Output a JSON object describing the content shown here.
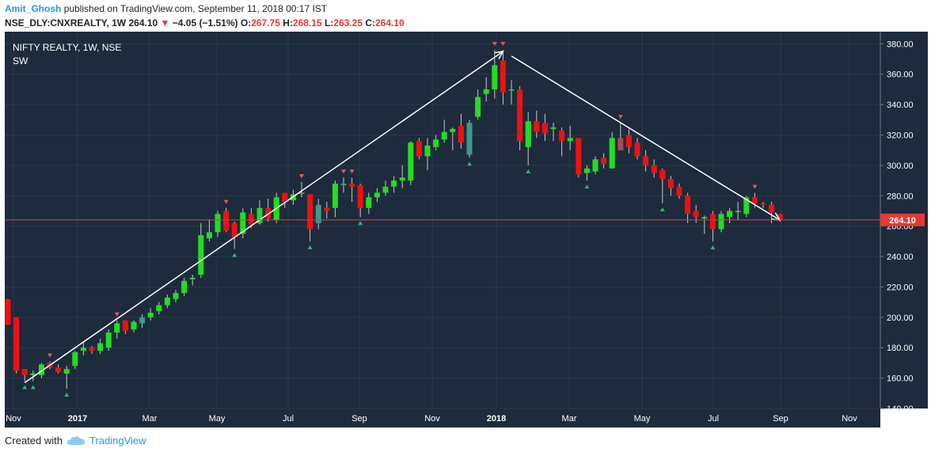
{
  "header": {
    "author": "Amit_Ghosh",
    "published": "published on TradingView.com, September 11, 2018 00:17 IST",
    "symbol": "NSE_DLY:CNXREALTY, 1W",
    "last": "264.10",
    "change": "−4.05 (−1.51%)",
    "o_label": "O:",
    "o_val": "267.75",
    "h_label": "H:",
    "h_val": "268.15",
    "l_label": "L:",
    "l_val": "263.25",
    "c_label": "C:",
    "c_val": "264.10"
  },
  "chart_title": "NIFTY REALTY, 1W, NSE",
  "indicator": "SW",
  "price_tag": "264.10",
  "footer": {
    "created_with": "Created with",
    "brand": "TradingView"
  },
  "colors": {
    "bg": "#1e2b3c",
    "up": "#22dd22",
    "down": "#ee1111",
    "up_dim": "#3a9a8a",
    "down_dim": "#a84c5c",
    "grid": "#2a3a4c",
    "trend": "#ffffff"
  },
  "chart_data": {
    "type": "candlestick",
    "title": "NIFTY REALTY, 1W, NSE",
    "ylim": [
      140,
      388
    ],
    "y_ticks": [
      "140.00",
      "160.00",
      "180.00",
      "200.00",
      "220.00",
      "240.00",
      "260.00",
      "280.00",
      "300.00",
      "320.00",
      "340.00",
      "360.00",
      "380.00"
    ],
    "x_ticks": [
      "Nov",
      "2017",
      "Mar",
      "May",
      "Jul",
      "Sep",
      "Nov",
      "2018",
      "Mar",
      "May",
      "Jul",
      "Sep",
      "Nov"
    ],
    "last_price": 264.1,
    "candles": [
      {
        "o": 212,
        "h": 212,
        "l": 195,
        "c": 195
      },
      {
        "o": 200,
        "h": 200,
        "l": 163,
        "c": 165
      },
      {
        "o": 166,
        "h": 166,
        "l": 158,
        "c": 162
      },
      {
        "o": 162,
        "h": 165,
        "l": 158,
        "c": 163
      },
      {
        "o": 162,
        "h": 170,
        "l": 160,
        "c": 169
      },
      {
        "o": 170,
        "h": 171,
        "l": 166,
        "c": 167
      },
      {
        "o": 167,
        "h": 169,
        "l": 163,
        "c": 164
      },
      {
        "o": 163,
        "h": 168,
        "l": 153,
        "c": 166
      },
      {
        "o": 168,
        "h": 178,
        "l": 166,
        "c": 177
      },
      {
        "o": 178,
        "h": 184,
        "l": 175,
        "c": 180
      },
      {
        "o": 180,
        "h": 181,
        "l": 176,
        "c": 178
      },
      {
        "o": 178,
        "h": 186,
        "l": 176,
        "c": 183
      },
      {
        "o": 180,
        "h": 192,
        "l": 178,
        "c": 190
      },
      {
        "o": 190,
        "h": 198,
        "l": 186,
        "c": 196
      },
      {
        "o": 198,
        "h": 198,
        "l": 189,
        "c": 191
      },
      {
        "o": 192,
        "h": 198,
        "l": 190,
        "c": 197
      },
      {
        "o": 196,
        "h": 202,
        "l": 193,
        "c": 200
      },
      {
        "o": 200,
        "h": 206,
        "l": 198,
        "c": 203
      },
      {
        "o": 204,
        "h": 210,
        "l": 202,
        "c": 208
      },
      {
        "o": 208,
        "h": 215,
        "l": 206,
        "c": 213
      },
      {
        "o": 212,
        "h": 218,
        "l": 210,
        "c": 216
      },
      {
        "o": 216,
        "h": 226,
        "l": 214,
        "c": 224
      },
      {
        "o": 225,
        "h": 228,
        "l": 221,
        "c": 226
      },
      {
        "o": 228,
        "h": 262,
        "l": 226,
        "c": 254
      },
      {
        "o": 252,
        "h": 264,
        "l": 250,
        "c": 256
      },
      {
        "o": 256,
        "h": 270,
        "l": 253,
        "c": 268
      },
      {
        "o": 270,
        "h": 272,
        "l": 256,
        "c": 257
      },
      {
        "o": 262,
        "h": 263,
        "l": 245,
        "c": 253
      },
      {
        "o": 255,
        "h": 272,
        "l": 252,
        "c": 269
      },
      {
        "o": 268,
        "h": 272,
        "l": 259,
        "c": 261
      },
      {
        "o": 262,
        "h": 277,
        "l": 261,
        "c": 272
      },
      {
        "o": 272,
        "h": 278,
        "l": 263,
        "c": 265
      },
      {
        "o": 264,
        "h": 282,
        "l": 262,
        "c": 279
      },
      {
        "o": 282,
        "h": 282,
        "l": 272,
        "c": 276
      },
      {
        "o": 277,
        "h": 284,
        "l": 274,
        "c": 281
      },
      {
        "o": 282,
        "h": 289,
        "l": 279,
        "c": 282
      },
      {
        "o": 281,
        "h": 281,
        "l": 250,
        "c": 258
      },
      {
        "o": 262,
        "h": 278,
        "l": 258,
        "c": 274
      },
      {
        "o": 272,
        "h": 276,
        "l": 265,
        "c": 270
      },
      {
        "o": 272,
        "h": 290,
        "l": 266,
        "c": 288
      },
      {
        "o": 287,
        "h": 292,
        "l": 282,
        "c": 288
      },
      {
        "o": 288,
        "h": 292,
        "l": 276,
        "c": 286
      },
      {
        "o": 287,
        "h": 288,
        "l": 266,
        "c": 272
      },
      {
        "o": 272,
        "h": 282,
        "l": 268,
        "c": 279
      },
      {
        "o": 279,
        "h": 285,
        "l": 276,
        "c": 282
      },
      {
        "o": 282,
        "h": 290,
        "l": 280,
        "c": 286
      },
      {
        "o": 286,
        "h": 293,
        "l": 282,
        "c": 290
      },
      {
        "o": 290,
        "h": 300,
        "l": 285,
        "c": 292
      },
      {
        "o": 290,
        "h": 316,
        "l": 287,
        "c": 315
      },
      {
        "o": 316,
        "h": 318,
        "l": 304,
        "c": 306
      },
      {
        "o": 306,
        "h": 318,
        "l": 297,
        "c": 313
      },
      {
        "o": 312,
        "h": 320,
        "l": 310,
        "c": 317
      },
      {
        "o": 317,
        "h": 330,
        "l": 315,
        "c": 322
      },
      {
        "o": 322,
        "h": 325,
        "l": 310,
        "c": 324
      },
      {
        "o": 326,
        "h": 334,
        "l": 311,
        "c": 315
      },
      {
        "o": 307,
        "h": 330,
        "l": 305,
        "c": 328
      },
      {
        "o": 332,
        "h": 350,
        "l": 330,
        "c": 345
      },
      {
        "o": 347,
        "h": 358,
        "l": 342,
        "c": 350
      },
      {
        "o": 350,
        "h": 376,
        "l": 344,
        "c": 366
      },
      {
        "o": 369,
        "h": 376,
        "l": 340,
        "c": 348
      },
      {
        "o": 350,
        "h": 356,
        "l": 340,
        "c": 350
      },
      {
        "o": 350,
        "h": 352,
        "l": 310,
        "c": 316
      },
      {
        "o": 312,
        "h": 335,
        "l": 300,
        "c": 329
      },
      {
        "o": 329,
        "h": 336,
        "l": 318,
        "c": 322
      },
      {
        "o": 328,
        "h": 334,
        "l": 316,
        "c": 321
      },
      {
        "o": 324,
        "h": 328,
        "l": 316,
        "c": 325
      },
      {
        "o": 323,
        "h": 325,
        "l": 306,
        "c": 316
      },
      {
        "o": 316,
        "h": 326,
        "l": 310,
        "c": 318
      },
      {
        "o": 318,
        "h": 318,
        "l": 292,
        "c": 294
      },
      {
        "o": 295,
        "h": 300,
        "l": 290,
        "c": 298
      },
      {
        "o": 296,
        "h": 306,
        "l": 294,
        "c": 304
      },
      {
        "o": 305,
        "h": 308,
        "l": 298,
        "c": 301
      },
      {
        "o": 298,
        "h": 322,
        "l": 298,
        "c": 318
      },
      {
        "o": 318,
        "h": 328,
        "l": 310,
        "c": 310
      },
      {
        "o": 320,
        "h": 324,
        "l": 308,
        "c": 312
      },
      {
        "o": 315,
        "h": 318,
        "l": 304,
        "c": 306
      },
      {
        "o": 306,
        "h": 310,
        "l": 296,
        "c": 300
      },
      {
        "o": 300,
        "h": 304,
        "l": 292,
        "c": 295
      },
      {
        "o": 297,
        "h": 298,
        "l": 275,
        "c": 291
      },
      {
        "o": 291,
        "h": 293,
        "l": 280,
        "c": 285
      },
      {
        "o": 286,
        "h": 288,
        "l": 278,
        "c": 280
      },
      {
        "o": 280,
        "h": 282,
        "l": 262,
        "c": 268
      },
      {
        "o": 270,
        "h": 274,
        "l": 262,
        "c": 266
      },
      {
        "o": 265,
        "h": 267,
        "l": 255,
        "c": 266
      },
      {
        "o": 268,
        "h": 270,
        "l": 250,
        "c": 258
      },
      {
        "o": 258,
        "h": 270,
        "l": 256,
        "c": 268
      },
      {
        "o": 266,
        "h": 272,
        "l": 262,
        "c": 270
      },
      {
        "o": 270,
        "h": 276,
        "l": 264,
        "c": 270
      },
      {
        "o": 268,
        "h": 280,
        "l": 266,
        "c": 279
      },
      {
        "o": 279,
        "h": 282,
        "l": 272,
        "c": 275
      },
      {
        "o": 275,
        "h": 276,
        "l": 272,
        "c": 274
      },
      {
        "o": 274,
        "h": 276,
        "l": 262,
        "c": 269
      },
      {
        "o": 268,
        "h": 268,
        "l": 263,
        "c": 264
      }
    ],
    "trendlines": [
      {
        "from": {
          "i": 2,
          "p": 157
        },
        "to": {
          "i": 59,
          "p": 375
        }
      },
      {
        "from": {
          "i": 60,
          "p": 372
        },
        "to": {
          "i": 92,
          "p": 264
        }
      }
    ]
  }
}
